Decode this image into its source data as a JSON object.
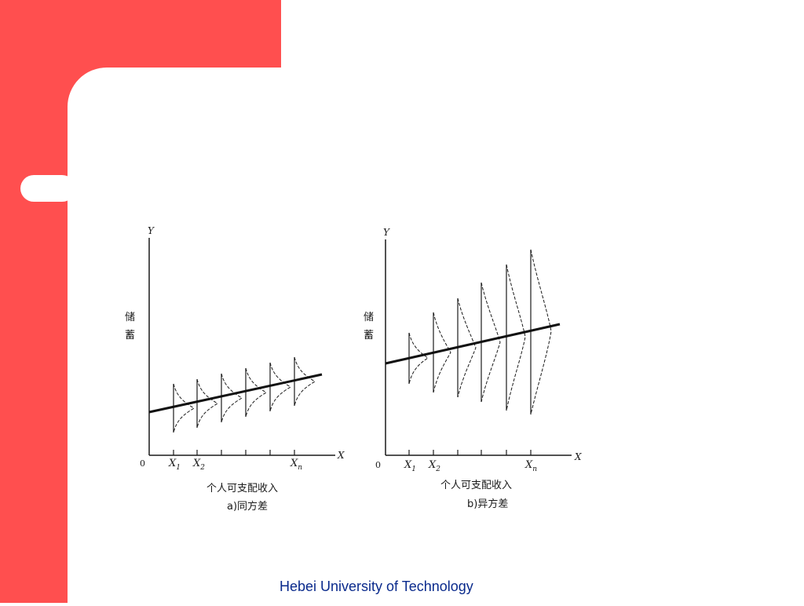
{
  "colors": {
    "accent": "#ff4f4f",
    "background": "#ffffff",
    "footer_text": "#0a2a8c",
    "ink": "#1a1a1a"
  },
  "footer": "Hebei University of Technology",
  "panels": [
    {
      "id": "a",
      "y_axis": "Y",
      "y_label_1": "储",
      "y_label_2": "蓄",
      "origin": "0",
      "x_axis": "X",
      "x_tick_1": "X",
      "x_tick_1_sub": "1",
      "x_tick_2": "X",
      "x_tick_2_sub": "2",
      "x_tick_n": "X",
      "x_tick_n_sub": "n",
      "x_label": "个人可支配收入",
      "caption": "a)同方差"
    },
    {
      "id": "b",
      "y_axis": "Y",
      "y_label_1": "储",
      "y_label_2": "蓄",
      "origin": "0",
      "x_axis": "X",
      "x_tick_1": "X",
      "x_tick_1_sub": "1",
      "x_tick_2": "X",
      "x_tick_2_sub": "2",
      "x_tick_n": "X",
      "x_tick_n_sub": "n",
      "x_label": "个人可支配收入",
      "caption": "b)异方差"
    }
  ]
}
